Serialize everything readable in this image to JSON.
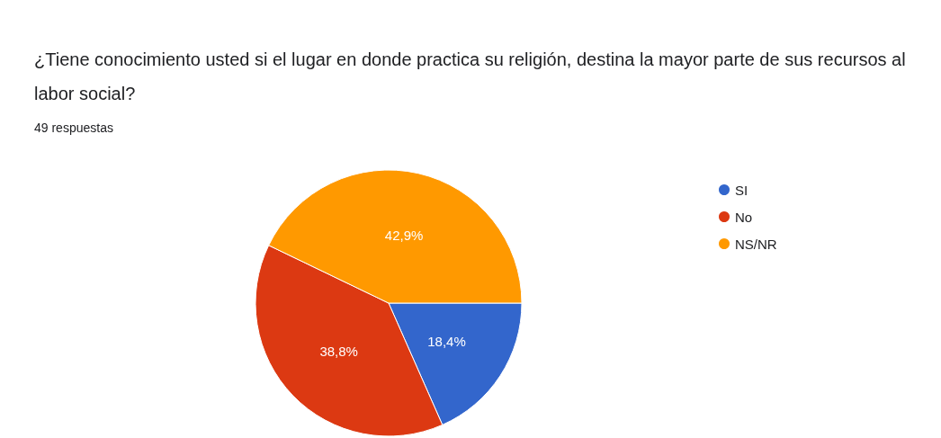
{
  "chart_data": {
    "type": "pie",
    "title": "¿Tiene conocimiento usted si el lugar en donde practica su religión, destina la mayor parte de sus recursos al labor social?",
    "subtitle": "49 respuestas",
    "categories": [
      "SI",
      "No",
      "NS/NR"
    ],
    "values": [
      18.4,
      38.8,
      42.9
    ],
    "value_labels": [
      "18,4%",
      "38,8%",
      "42,9%"
    ],
    "colors": [
      "#3366cc",
      "#dc3912",
      "#ff9900"
    ],
    "legend": "top right"
  }
}
